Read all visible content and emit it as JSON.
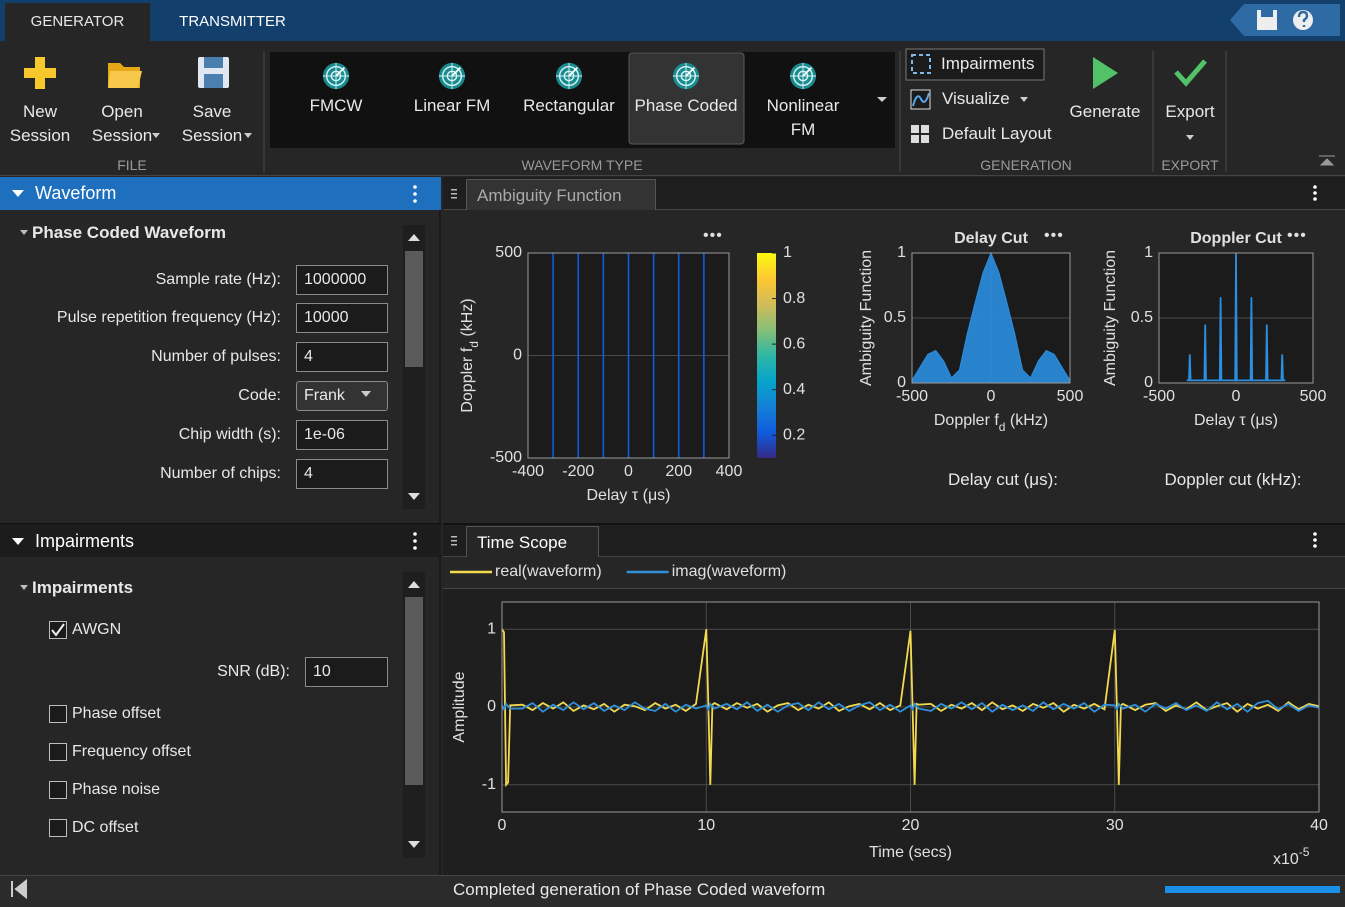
{
  "tabs": [
    "GENERATOR",
    "TRANSMITTER"
  ],
  "toolstrip": {
    "file": {
      "label": "FILE",
      "buttons": [
        "New Session",
        "Open Session",
        "Save Session"
      ]
    },
    "waveform_type": {
      "label": "WAVEFORM TYPE",
      "items": [
        "FMCW",
        "Linear FM",
        "Rectangular",
        "Phase Coded",
        "Nonlinear FM"
      ],
      "selected": 3
    },
    "generation": {
      "label": "GENERATION",
      "items": [
        "Impairments",
        "Visualize",
        "Default Layout"
      ],
      "generate": "Generate"
    },
    "export": {
      "label": "EXPORT",
      "button": "Export"
    }
  },
  "waveform_panel": {
    "title": "Waveform",
    "section": "Phase Coded Waveform",
    "fields": [
      {
        "label": "Sample rate (Hz):",
        "value": "1000000"
      },
      {
        "label": "Pulse repetition frequency (Hz):",
        "value": "10000"
      },
      {
        "label": "Number of pulses:",
        "value": "4"
      },
      {
        "label": "Code:",
        "value": "Frank"
      },
      {
        "label": "Chip width (s):",
        "value": "1e-06"
      },
      {
        "label": "Number of chips:",
        "value": "4"
      }
    ]
  },
  "impairments_panel": {
    "title": "Impairments",
    "section": "Impairments",
    "awgn": {
      "label": "AWGN",
      "checked": true
    },
    "snr": {
      "label": "SNR (dB):",
      "value": "10"
    },
    "options": [
      "Phase offset",
      "Frequency offset",
      "Phase noise",
      "DC offset"
    ]
  },
  "ambiguity": {
    "tab": "Ambiguity Function",
    "delay_cut_label": "Delay cut (μs):",
    "doppler_cut_label": "Doppler cut (kHz):"
  },
  "time_scope": {
    "tab": "Time Scope"
  },
  "status": "Completed generation of Phase Coded waveform",
  "chart_data": [
    {
      "type": "image",
      "xlabel": "Delay  τ  (μs)",
      "ylabel": [
        "Doppler  f",
        "d",
        "  (kHz)"
      ],
      "x": [
        -300,
        -200,
        -100,
        0,
        100,
        200,
        300
      ],
      "values": [
        0.2,
        0.2,
        0.2,
        0.2,
        0.2,
        0.2,
        0.2
      ],
      "xlim": [
        -400,
        400
      ],
      "xticks": [
        -400,
        -200,
        0,
        200,
        400
      ],
      "ylim": [
        -500,
        500
      ],
      "yticks": [
        -500,
        0,
        500
      ],
      "grid": true,
      "colorbar": {
        "clim": [
          0.1,
          1
        ],
        "ticks": [
          0.2,
          0.4,
          0.6,
          0.8,
          1
        ]
      }
    },
    {
      "type": "area",
      "title": "Delay Cut",
      "xlabel": [
        "Doppler  f",
        "d",
        "  (kHz)"
      ],
      "ylabel": "Ambiguity Function",
      "color": "#2b8ee0",
      "x": [
        -500,
        -450,
        -400,
        -350,
        -300,
        -250,
        -200,
        -150,
        -100,
        -50,
        0,
        50,
        100,
        150,
        200,
        250,
        300,
        350,
        400,
        450,
        500
      ],
      "values": [
        0.02,
        0.12,
        0.22,
        0.25,
        0.17,
        0.04,
        0.1,
        0.38,
        0.62,
        0.85,
        1,
        0.85,
        0.62,
        0.38,
        0.1,
        0.04,
        0.17,
        0.25,
        0.22,
        0.12,
        0.02
      ],
      "xlim": [
        -500,
        500
      ],
      "xticks": [
        -500,
        0,
        500
      ],
      "ylim": [
        0,
        1
      ],
      "yticks": [
        0,
        0.5,
        1
      ],
      "grid": true
    },
    {
      "type": "line",
      "title": "Doppler Cut",
      "xlabel": "Delay  τ  (μs)",
      "ylabel": "Ambiguity Function",
      "color": "#2b8ee0",
      "x": [
        -320,
        -305,
        -300,
        -295,
        -205,
        -200,
        -195,
        -105,
        -100,
        -95,
        -5,
        0,
        5,
        95,
        100,
        105,
        195,
        200,
        205,
        295,
        300,
        305,
        320
      ],
      "values": [
        0.02,
        0.02,
        0.22,
        0.02,
        0.02,
        0.45,
        0.02,
        0.02,
        0.66,
        0.02,
        0.02,
        1,
        0.02,
        0.02,
        0.66,
        0.02,
        0.02,
        0.45,
        0.02,
        0.02,
        0.22,
        0.02,
        0.02
      ],
      "xlim": [
        -500,
        500
      ],
      "xticks": [
        -500,
        0,
        500
      ],
      "ylim": [
        0,
        1
      ],
      "yticks": [
        0,
        0.5,
        1
      ],
      "grid": true
    },
    {
      "type": "line",
      "xlabel": "Time (secs)",
      "ylabel": "Amplitude",
      "x_multiplier": [
        "x10",
        "-5"
      ],
      "legend": "top",
      "x": [
        0,
        0.1,
        0.2,
        0.3,
        0.4,
        1,
        1.5,
        2,
        2.5,
        3,
        3.5,
        4,
        4.5,
        5,
        5.5,
        6,
        6.5,
        7,
        7.5,
        8,
        8.5,
        9,
        9.5,
        10,
        10.1,
        10.2,
        10.3,
        10.4,
        11,
        11.5,
        12,
        12.5,
        13,
        13.5,
        14,
        14.5,
        15,
        15.5,
        16,
        16.5,
        17,
        17.5,
        18,
        18.5,
        19,
        19.5,
        20,
        20.1,
        20.2,
        20.3,
        20.4,
        21,
        21.5,
        22,
        22.5,
        23,
        23.5,
        24,
        24.5,
        25,
        25.5,
        26,
        26.5,
        27,
        27.5,
        28,
        28.5,
        29,
        29.5,
        30,
        30.1,
        30.2,
        30.3,
        30.4,
        31,
        31.5,
        32,
        32.5,
        33,
        33.5,
        34,
        34.5,
        35,
        35.5,
        36,
        36.5,
        37,
        37.5,
        38,
        38.5,
        39,
        39.5,
        40
      ],
      "series": [
        {
          "name": "real(waveform)",
          "color": "#f2d94e",
          "values": [
            1,
            0.96,
            -1,
            -0.97,
            0.02,
            0.03,
            -0.04,
            0.05,
            -0.02,
            0.06,
            -0.05,
            0.02,
            -0.03,
            0.04,
            -0.06,
            0.03,
            0.01,
            -0.04,
            0.05,
            -0.02,
            0.03,
            -0.05,
            0.04,
            1,
            0.04,
            -1,
            0.03,
            0.05,
            -0.03,
            0.05,
            -0.01,
            0.04,
            -0.06,
            0.02,
            0.05,
            -0.04,
            0.03,
            -0.02,
            0.06,
            -0.05,
            0.01,
            0.04,
            -0.03,
            0.05,
            -0.04,
            0.02,
            0.98,
            0.02,
            -1,
            0.04,
            0.03,
            0.04,
            -0.05,
            0.03,
            -0.02,
            0.05,
            -0.04,
            0.06,
            -0.03,
            0.02,
            -0.05,
            0.04,
            -0.01,
            0.05,
            -0.06,
            0.03,
            -0.02,
            0.04,
            -0.03,
            0.99,
            0.05,
            -1,
            0.02,
            0.04,
            -0.04,
            0.03,
            0.05,
            -0.05,
            0.02,
            -0.03,
            0.06,
            -0.04,
            0.01,
            0.05,
            -0.06,
            0.04,
            -0.02,
            0.03,
            -0.05,
            0.06,
            -0.03,
            0.04,
            0.01
          ]
        },
        {
          "name": "imag(waveform)",
          "color": "#2f8fd8",
          "values": [
            0.02,
            -0.03,
            0.04,
            0.01,
            -0.02,
            -0.02,
            0.05,
            -0.06,
            0.03,
            -0.04,
            0.06,
            -0.03,
            0.05,
            -0.05,
            0.02,
            -0.04,
            0.06,
            -0.02,
            -0.05,
            0.04,
            -0.06,
            0.03,
            -0.02,
            0.02,
            -0.03,
            0.04,
            0.01,
            -0.02,
            0.04,
            -0.03,
            0.06,
            -0.05,
            0.03,
            -0.06,
            0.02,
            0.05,
            -0.04,
            0.06,
            -0.03,
            0.04,
            -0.05,
            0.02,
            0.06,
            -0.04,
            0.03,
            -0.06,
            0.02,
            -0.03,
            0.04,
            0.01,
            -0.02,
            -0.05,
            0.04,
            -0.02,
            0.06,
            -0.03,
            0.05,
            -0.06,
            0.03,
            -0.04,
            0.02,
            -0.05,
            0.06,
            -0.03,
            0.04,
            -0.02,
            0.05,
            -0.06,
            0.03,
            0.02,
            -0.03,
            0.04,
            0.01,
            -0.02,
            0.03,
            -0.06,
            0.04,
            -0.02,
            0.05,
            -0.04,
            0.02,
            -0.05,
            0.06,
            -0.03,
            0.04,
            -0.06,
            0.05,
            0.08,
            -0.03,
            0.04,
            -0.05,
            0.02,
            -0.01
          ]
        }
      ],
      "xlim": [
        0,
        40
      ],
      "xticks": [
        0,
        10,
        20,
        30,
        40
      ],
      "ylim": [
        -1.35,
        1.35
      ],
      "yticks": [
        -1,
        0,
        1
      ],
      "grid": true
    }
  ]
}
